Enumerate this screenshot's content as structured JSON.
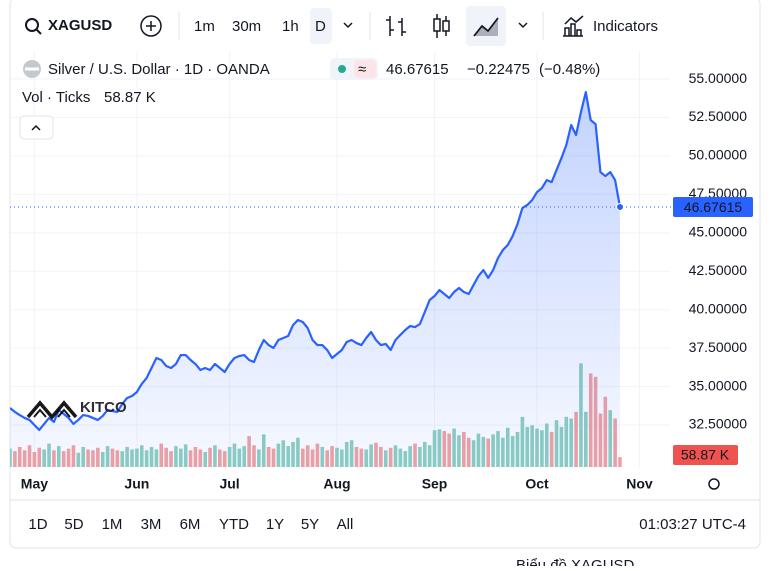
{
  "toolbar": {
    "symbol": "XAGUSD",
    "intervals": [
      "1m",
      "30m",
      "1h",
      "D"
    ],
    "indicators": "Indicators"
  },
  "legend": {
    "title": "Silver / U.S. Dollar · 1D · OANDA",
    "last": "46.67615",
    "change": "−0.22475",
    "change_pct": "(−0.48%)",
    "volume_title": "Vol · Ticks"
  },
  "watermark": "KITCO",
  "ranges": [
    "1D",
    "5D",
    "1M",
    "3M",
    "6M",
    "YTD",
    "1Y",
    "5Y",
    "All"
  ],
  "clock": "01:03:27 UTC-4",
  "footer_link": "Biểu đồ XAGUSD",
  "chart_data": {
    "type": "line",
    "categories": [
      null,
      null,
      null,
      null,
      null,
      "May",
      null,
      null,
      null,
      null,
      null,
      null,
      null,
      null,
      null,
      null,
      null,
      null,
      null,
      null,
      null,
      null,
      null,
      null,
      null,
      null,
      "Jun",
      null,
      null,
      null,
      null,
      null,
      null,
      null,
      null,
      null,
      null,
      null,
      null,
      null,
      null,
      null,
      null,
      null,
      null,
      "Jul",
      null,
      null,
      null,
      null,
      null,
      null,
      null,
      null,
      null,
      null,
      null,
      null,
      null,
      null,
      null,
      null,
      null,
      null,
      null,
      null,
      null,
      "Aug",
      null,
      null,
      null,
      null,
      null,
      null,
      null,
      null,
      null,
      null,
      null,
      null,
      null,
      null,
      null,
      null,
      null,
      null,
      null,
      "Sep",
      null,
      null,
      null,
      null,
      null,
      null,
      null,
      null,
      null,
      null,
      null,
      null,
      null,
      null,
      null,
      null,
      null,
      null,
      null,
      null,
      "Oct",
      null,
      null,
      null,
      null,
      null,
      null,
      null,
      null,
      null,
      null,
      null,
      null,
      null,
      null,
      null,
      null,
      null,
      null,
      null,
      null,
      "Nov"
    ],
    "series": [
      {
        "name": "XAGUSD",
        "color": "#2962ff",
        "values": [
          33.61,
          33.35,
          33.15,
          32.96,
          32.83,
          32.5,
          32.18,
          32.57,
          32.96,
          32.7,
          33.48,
          33.22,
          32.96,
          32.57,
          32.83,
          33.15,
          33.09,
          32.96,
          32.83,
          33.09,
          33.48,
          33.41,
          33.35,
          33.87,
          34.26,
          34.39,
          34.65,
          35.17,
          35.56,
          36.21,
          36.86,
          36.73,
          36.34,
          36.21,
          36.47,
          37.05,
          37.05,
          36.73,
          36.47,
          36.08,
          36.21,
          36.08,
          36.47,
          36.21,
          35.95,
          36.47,
          36.86,
          36.99,
          37.05,
          36.73,
          36.6,
          37.38,
          38.03,
          37.7,
          37.51,
          38.03,
          38.16,
          38.29,
          39.0,
          39.33,
          39.2,
          38.81,
          38.03,
          37.7,
          37.7,
          37.38,
          36.86,
          37.12,
          37.38,
          37.9,
          38.03,
          37.83,
          37.7,
          38.16,
          38.55,
          38.03,
          37.7,
          37.77,
          37.38,
          38.03,
          38.36,
          38.68,
          38.94,
          38.87,
          39.07,
          39.85,
          40.63,
          40.89,
          41.28,
          41.02,
          40.76,
          41.15,
          41.41,
          41.15,
          41.02,
          41.61,
          42.19,
          42.58,
          42.07,
          42.58,
          43.36,
          43.88,
          44.21,
          44.79,
          45.57,
          46.61,
          46.81,
          47.13,
          47.65,
          47.91,
          48.43,
          48.3,
          49.08,
          49.86,
          50.71,
          52.01,
          51.36,
          52.85,
          54.15,
          52.33,
          52.07,
          48.95,
          48.69,
          48.95,
          48.43,
          46.67615,
          null,
          null,
          null,
          null
        ]
      }
    ],
    "volume": {
      "name": "Vol · Ticks",
      "up_color": "#8dcfc1",
      "down_color": "#f2a2a2",
      "last_color": "#ef5350",
      "last_label": "58.87 K",
      "vlim": [
        0,
        700
      ],
      "values": [
        110,
        95,
        120,
        100,
        130,
        90,
        115,
        105,
        140,
        100,
        125,
        95,
        110,
        130,
        85,
        120,
        105,
        100,
        115,
        90,
        125,
        110,
        100,
        95,
        120,
        105,
        110,
        130,
        100,
        120,
        105,
        140,
        115,
        95,
        125,
        110,
        135,
        100,
        120,
        105,
        90,
        115,
        130,
        105,
        95,
        120,
        140,
        110,
        125,
        185,
        130,
        105,
        195,
        120,
        110,
        140,
        160,
        125,
        150,
        175,
        110,
        130,
        105,
        140,
        120,
        100,
        125,
        115,
        105,
        150,
        160,
        120,
        110,
        105,
        135,
        145,
        120,
        100,
        115,
        130,
        110,
        95,
        125,
        140,
        120,
        150,
        130,
        220,
        225,
        215,
        200,
        230,
        190,
        210,
        175,
        160,
        200,
        180,
        170,
        195,
        215,
        175,
        235,
        185,
        210,
        300,
        240,
        250,
        230,
        220,
        260,
        210,
        280,
        240,
        300,
        290,
        330,
        620,
        330,
        560,
        540,
        320,
        420,
        340,
        290,
        58.87
      ]
    },
    "ylim": [
      29.77,
      56.76
    ],
    "yticks": [
      {
        "value": 32.5,
        "label": "32.50000"
      },
      {
        "value": 35,
        "label": "35.00000"
      },
      {
        "value": 37.5,
        "label": "37.50000"
      },
      {
        "value": 40,
        "label": "40.00000"
      },
      {
        "value": 42.5,
        "label": "42.50000"
      },
      {
        "value": 45,
        "label": "45.00000"
      },
      {
        "value": 47.5,
        "label": "47.50000"
      },
      {
        "value": 50,
        "label": "50.00000"
      },
      {
        "value": 52.5,
        "label": "52.50000"
      },
      {
        "value": 55,
        "label": "55.00000"
      }
    ],
    "grid": true
  }
}
